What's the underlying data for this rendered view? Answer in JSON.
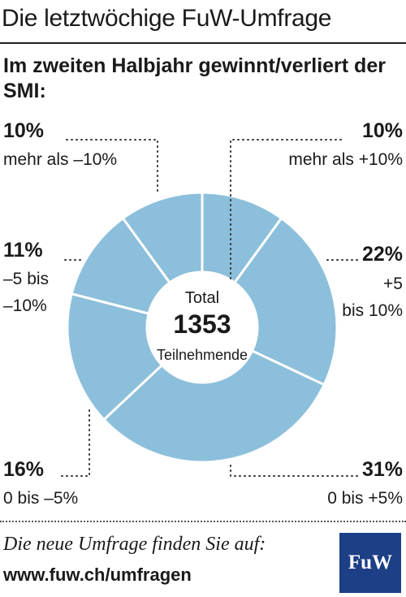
{
  "header": {
    "title": "Die letztwöchige FuW-Umfrage",
    "subtitle": "Im zweiten Halbjahr gewinnt/verliert der SMI:"
  },
  "chart_data": {
    "type": "donut",
    "title": "Im zweiten Halbjahr gewinnt/verliert der SMI:",
    "center": {
      "label_top": "Total",
      "value": "1353",
      "label_bottom": "Teilnehmende"
    },
    "color": "#8cbfdb",
    "slices": [
      {
        "percent_label": "10%",
        "label": "mehr als +10%",
        "value": 10
      },
      {
        "percent_label": "22%",
        "label": "+5 bis 10%",
        "value": 22
      },
      {
        "percent_label": "31%",
        "label": "0 bis +5%",
        "value": 31
      },
      {
        "percent_label": "16%",
        "label": "0 bis –5%",
        "value": 16
      },
      {
        "percent_label": "11%",
        "label": "–5 bis –10%",
        "value": 11
      },
      {
        "percent_label": "10%",
        "label": "mehr als –10%",
        "value": 10
      }
    ]
  },
  "labels": {
    "left_top": {
      "pct": "10%",
      "line1": "mehr als –10%"
    },
    "right_top": {
      "pct": "10%",
      "line1": "mehr als +10%"
    },
    "left_mid": {
      "pct": "11%",
      "line1": "–5 bis",
      "line2": "–10%"
    },
    "right_mid": {
      "pct": "22%",
      "line1": "+5",
      "line2": "bis 10%"
    },
    "left_bot": {
      "pct": "16%",
      "line1": "0 bis –5%"
    },
    "right_bot": {
      "pct": "31%",
      "line1": "0 bis +5%"
    }
  },
  "footer": {
    "text": "Die neue Umfrage finden Sie auf:",
    "url": "www.fuw.ch/umfragen",
    "logo_text": "FuW"
  }
}
